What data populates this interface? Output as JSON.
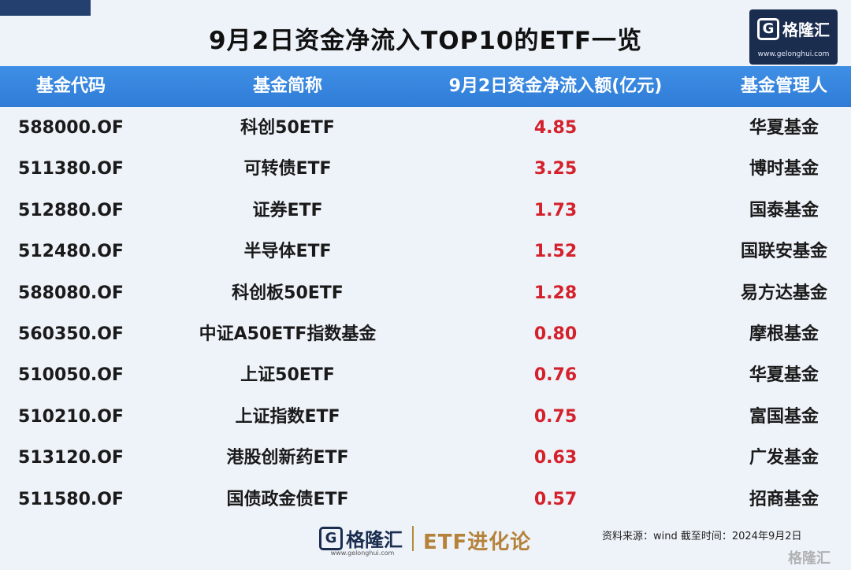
{
  "title": "9月2日资金净流入TOP10的ETF一览",
  "logo": {
    "mark": "G",
    "name": "格隆汇",
    "url": "www.gelonghui.com"
  },
  "table": {
    "headers": [
      "基金代码",
      "基金简称",
      "9月2日资金净流入额(亿元)",
      "基金管理人"
    ],
    "rows": [
      {
        "code": "588000.OF",
        "name": "科创50ETF",
        "inflow": "4.85",
        "manager": "华夏基金"
      },
      {
        "code": "511380.OF",
        "name": "可转债ETF",
        "inflow": "3.25",
        "manager": "博时基金"
      },
      {
        "code": "512880.OF",
        "name": "证券ETF",
        "inflow": "1.73",
        "manager": "国泰基金"
      },
      {
        "code": "512480.OF",
        "name": "半导体ETF",
        "inflow": "1.52",
        "manager": "国联安基金"
      },
      {
        "code": "588080.OF",
        "name": "科创板50ETF",
        "inflow": "1.28",
        "manager": "易方达基金"
      },
      {
        "code": "560350.OF",
        "name": "中证A50ETF指数基金",
        "inflow": "0.80",
        "manager": "摩根基金"
      },
      {
        "code": "510050.OF",
        "name": "上证50ETF",
        "inflow": "0.76",
        "manager": "华夏基金"
      },
      {
        "code": "510210.OF",
        "name": "上证指数ETF",
        "inflow": "0.75",
        "manager": "富国基金"
      },
      {
        "code": "513120.OF",
        "name": "港股创新药ETF",
        "inflow": "0.63",
        "manager": "广发基金"
      },
      {
        "code": "511580.OF",
        "name": "国债政金债ETF",
        "inflow": "0.57",
        "manager": "招商基金"
      }
    ]
  },
  "footer": {
    "logo_mark": "G",
    "logo_name": "格隆汇",
    "logo_url": "www.gelonghui.com",
    "series": "ETF进化论",
    "source": "资料来源：wind  截至时间：2024年9月2日",
    "watermark": "格隆汇"
  },
  "colors": {
    "header_bg": "#3585dd",
    "value_red": "#d4212b",
    "brand_navy": "#1b2d4f",
    "gold": "#b5823a"
  }
}
